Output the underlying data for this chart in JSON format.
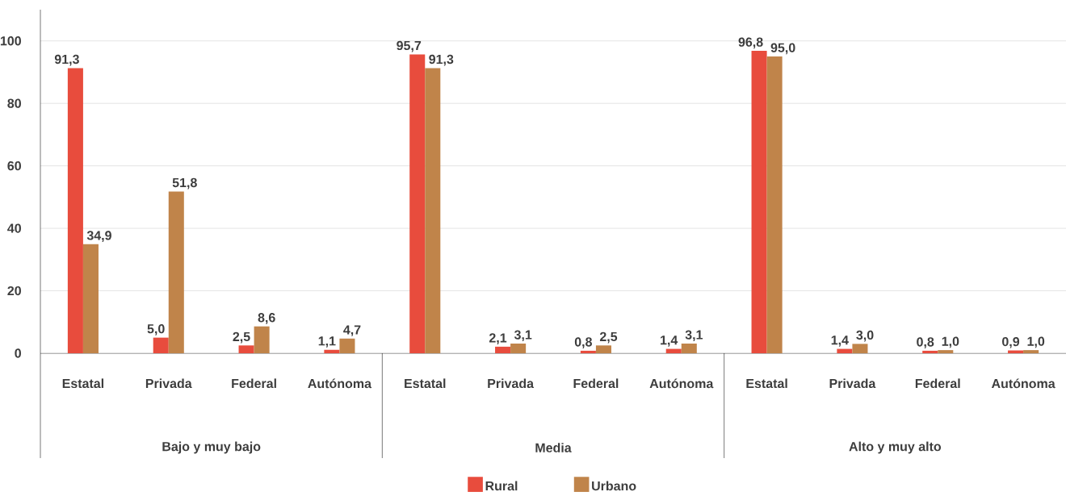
{
  "chart_data": {
    "type": "bar",
    "categories": [
      "Estatal",
      "Privada",
      "Federal",
      "Autónoma",
      "Estatal",
      "Privada",
      "Federal",
      "Autónoma",
      "Estatal",
      "Privada",
      "Federal",
      "Autónoma"
    ],
    "series": [
      {
        "name": "Rural",
        "color": "#e84c3d",
        "values": [
          91.3,
          5.0,
          2.5,
          1.1,
          95.7,
          2.1,
          0.8,
          1.4,
          96.8,
          1.4,
          0.8,
          0.9
        ],
        "value_labels": [
          "91,3",
          "5,0",
          "2,5",
          "1,1",
          "95,7",
          "2,1",
          "0,8",
          "1,4",
          "96,8",
          "1,4",
          "0,8",
          "0,9"
        ]
      },
      {
        "name": "Urbano",
        "color": "#c0844a",
        "values": [
          34.9,
          51.8,
          8.6,
          4.7,
          91.3,
          3.1,
          2.5,
          3.1,
          95.0,
          3.0,
          1.0,
          1.0
        ],
        "value_labels": [
          "34,9",
          "51,8",
          "8,6",
          "4,7",
          "91,3",
          "3,1",
          "2,5",
          "3,1",
          "95,0",
          "3,0",
          "1,0",
          "1,0"
        ]
      }
    ],
    "annotations": [
      "Bajo y muy bajo",
      "Media",
      "Alto y muy alto"
    ],
    "ylim": [
      0,
      110
    ],
    "yticks": [
      0,
      20,
      40,
      60,
      80,
      100
    ],
    "grid": "y",
    "legend": "bottom"
  }
}
